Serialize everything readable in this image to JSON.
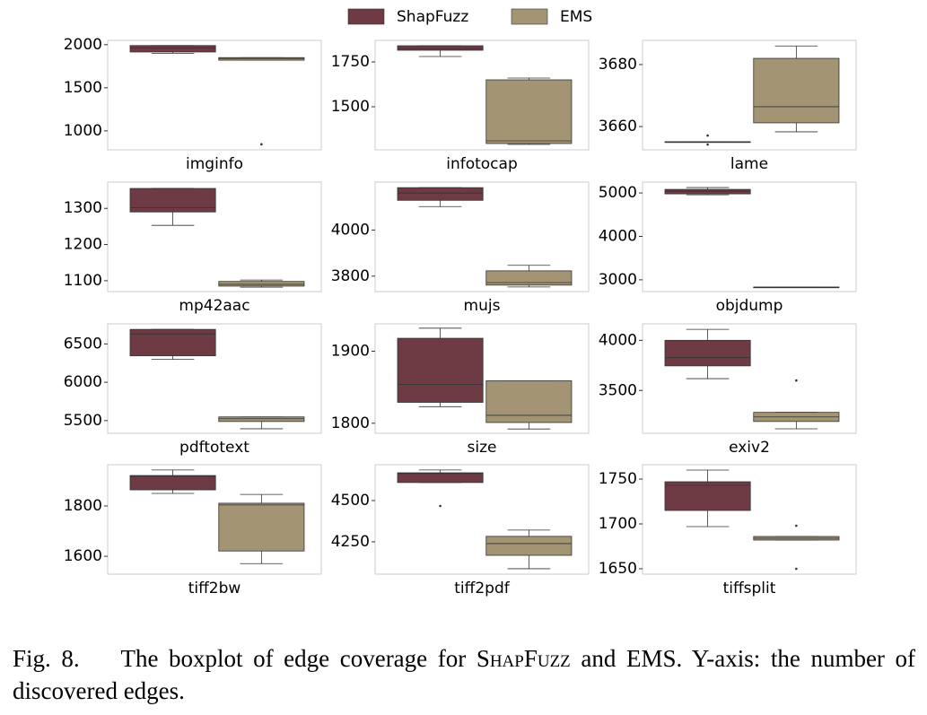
{
  "legend": [
    {
      "name": "ShapFuzz",
      "color": "#6e3a43"
    },
    {
      "name": "EMS",
      "color": "#a39474"
    }
  ],
  "caption": {
    "label": "Fig. 8.",
    "before": "The boxplot of edge coverage for",
    "name": "ShapFuzz",
    "after": "and EMS. Y-axis: the number of discovered edges."
  },
  "chart_data": [
    {
      "type": "box",
      "title": "imginfo",
      "ylim": [
        780,
        2050
      ],
      "yticks": [
        1000,
        1500,
        2000
      ],
      "boxes": [
        {
          "whislo": 1900,
          "q1": 1915,
          "med": 1960,
          "q3": 1990,
          "whishi": 1990
        },
        {
          "whislo": 1820,
          "q1": 1820,
          "med": 1840,
          "q3": 1850,
          "whishi": 1850,
          "fliers": [
            844
          ]
        }
      ]
    },
    {
      "type": "box",
      "title": "infotocap",
      "ylim": [
        1260,
        1870
      ],
      "yticks": [
        1500,
        1750
      ],
      "boxes": [
        {
          "whislo": 1780,
          "q1": 1815,
          "med": 1825,
          "q3": 1840,
          "whishi": 1840
        },
        {
          "whislo": 1290,
          "q1": 1295,
          "med": 1310,
          "q3": 1650,
          "whishi": 1660
        }
      ]
    },
    {
      "type": "box",
      "title": "lame",
      "ylim": [
        3652.5,
        3687.8
      ],
      "yticks": [
        3660,
        3680
      ],
      "boxes": [
        {
          "whislo": 3655.1,
          "q1": 3655.1,
          "med": 3655.1,
          "q3": 3655.1,
          "whishi": 3655.1,
          "fliers": [
            3657.1,
            3654.2
          ]
        },
        {
          "whislo": 3658.3,
          "q1": 3661.2,
          "med": 3666.4,
          "q3": 3682,
          "whishi": 3686
        }
      ]
    },
    {
      "type": "box",
      "title": "mp42aac",
      "ylim": [
        1070,
        1372.5
      ],
      "yticks": [
        1100,
        1200,
        1300
      ],
      "boxes": [
        {
          "whislo": 1253,
          "q1": 1290,
          "med": 1302,
          "q3": 1355,
          "whishi": 1355
        },
        {
          "whislo": 1082,
          "q1": 1085,
          "med": 1090,
          "q3": 1098,
          "whishi": 1102
        }
      ]
    },
    {
      "type": "box",
      "title": "mujs",
      "ylim": [
        3733,
        4208
      ],
      "yticks": [
        3800,
        4000
      ],
      "boxes": [
        {
          "whislo": 4102,
          "q1": 4129,
          "med": 4161,
          "q3": 4184,
          "whishi": 4184
        },
        {
          "whislo": 3753,
          "q1": 3761,
          "med": 3772,
          "q3": 3823,
          "whishi": 3847
        }
      ]
    },
    {
      "type": "box",
      "title": "objdump",
      "ylim": [
        2729,
        5250
      ],
      "yticks": [
        3000,
        4000,
        5000
      ],
      "boxes": [
        {
          "whislo": 4958,
          "q1": 4979,
          "med": 5042,
          "q3": 5083,
          "whishi": 5125
        },
        {
          "whislo": 2833,
          "q1": 2833,
          "med": 2833,
          "q3": 2833,
          "whishi": 2833
        }
      ]
    },
    {
      "type": "box",
      "title": "pdftotext",
      "ylim": [
        5334,
        6762
      ],
      "yticks": [
        5500,
        6000,
        6500
      ],
      "boxes": [
        {
          "whislo": 6298,
          "q1": 6345,
          "med": 6631,
          "q3": 6690,
          "whishi": 6690
        },
        {
          "whislo": 5393,
          "q1": 5488,
          "med": 5524,
          "q3": 5548,
          "whishi": 5548
        }
      ]
    },
    {
      "type": "box",
      "title": "size",
      "ylim": [
        1786,
        1938
      ],
      "yticks": [
        1800,
        1900
      ],
      "boxes": [
        {
          "whislo": 1823,
          "q1": 1829,
          "med": 1854,
          "q3": 1918,
          "whishi": 1932
        },
        {
          "whislo": 1792,
          "q1": 1801,
          "med": 1811,
          "q3": 1859,
          "whishi": 1859
        }
      ]
    },
    {
      "type": "box",
      "title": "exiv2",
      "ylim": [
        3073,
        4164
      ],
      "yticks": [
        3500,
        4000
      ],
      "boxes": [
        {
          "whislo": 3618,
          "q1": 3745,
          "med": 3827,
          "q3": 4000,
          "whishi": 4109
        },
        {
          "whislo": 3118,
          "q1": 3191,
          "med": 3236,
          "q3": 3282,
          "whishi": 3282,
          "fliers": [
            3600
          ]
        }
      ]
    },
    {
      "type": "box",
      "title": "tiff2bw",
      "ylim": [
        1529,
        1964
      ],
      "yticks": [
        1600,
        1800
      ],
      "boxes": [
        {
          "whislo": 1850,
          "q1": 1864,
          "med": 1918,
          "q3": 1921,
          "whishi": 1943
        },
        {
          "whislo": 1571,
          "q1": 1621,
          "med": 1804,
          "q3": 1811,
          "whishi": 1846
        }
      ]
    },
    {
      "type": "box",
      "title": "tiff2pdf",
      "ylim": [
        4054,
        4717
      ],
      "yticks": [
        4250,
        4500
      ],
      "boxes": [
        {
          "whislo": 4609,
          "q1": 4609,
          "med": 4663,
          "q3": 4668,
          "whishi": 4685,
          "fliers": [
            4467
          ]
        },
        {
          "whislo": 4087,
          "q1": 4168,
          "med": 4239,
          "q3": 4283,
          "whishi": 4321
        }
      ]
    },
    {
      "type": "box",
      "title": "tiffsplit",
      "ylim": [
        1644,
        1766
      ],
      "yticks": [
        1650,
        1700,
        1750
      ],
      "boxes": [
        {
          "whislo": 1697,
          "q1": 1715,
          "med": 1743,
          "q3": 1747,
          "whishi": 1760
        },
        {
          "whislo": 1682,
          "q1": 1682,
          "med": 1684,
          "q3": 1686,
          "whishi": 1686,
          "fliers": [
            1698,
            1650
          ]
        }
      ]
    }
  ]
}
